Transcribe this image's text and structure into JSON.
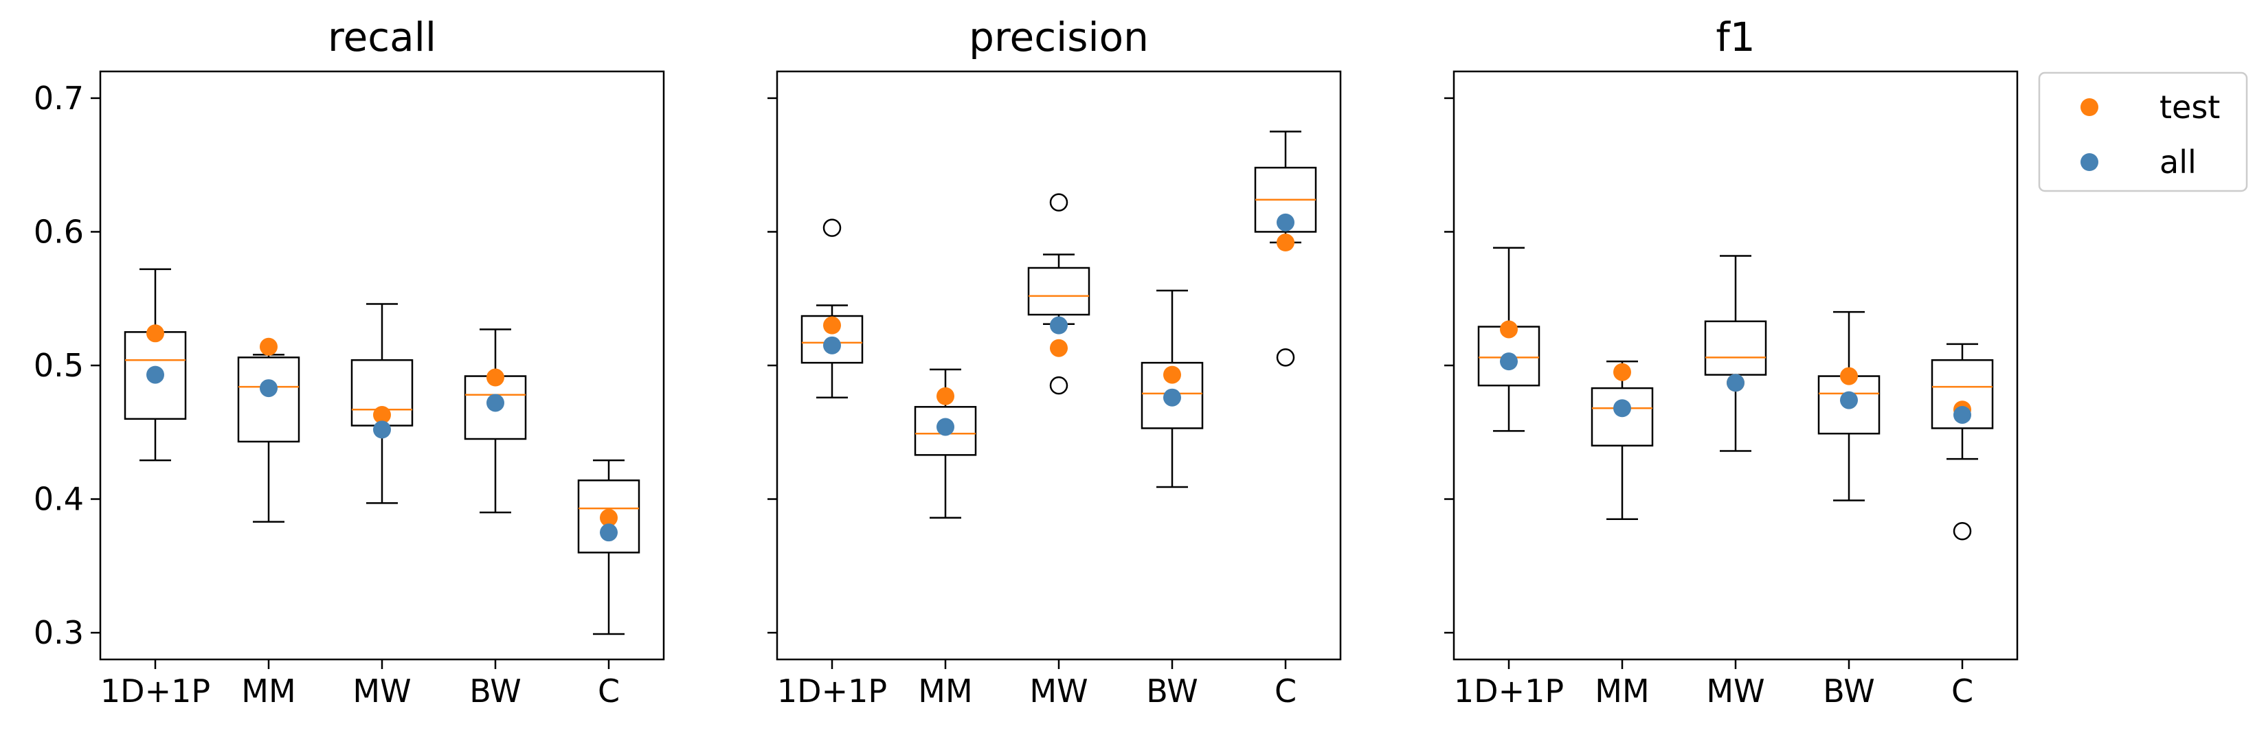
{
  "chart_data": [
    {
      "type": "box",
      "title": "recall",
      "categories": [
        "1D+1P",
        "MM",
        "MW",
        "BW",
        "C"
      ],
      "ylim": [
        0.28,
        0.72
      ],
      "yticks": [
        "0.3",
        "0.4",
        "0.5",
        "0.6",
        "0.7"
      ],
      "boxes": [
        {
          "whisker_low": 0.429,
          "q1": 0.46,
          "median": 0.504,
          "q3": 0.525,
          "whisker_high": 0.572,
          "outliers": []
        },
        {
          "whisker_low": 0.383,
          "q1": 0.443,
          "median": 0.484,
          "q3": 0.506,
          "whisker_high": 0.508,
          "outliers": []
        },
        {
          "whisker_low": 0.397,
          "q1": 0.455,
          "median": 0.467,
          "q3": 0.504,
          "whisker_high": 0.546,
          "outliers": []
        },
        {
          "whisker_low": 0.39,
          "q1": 0.445,
          "median": 0.478,
          "q3": 0.492,
          "whisker_high": 0.527,
          "outliers": []
        },
        {
          "whisker_low": 0.299,
          "q1": 0.36,
          "median": 0.393,
          "q3": 0.414,
          "whisker_high": 0.429,
          "outliers": []
        }
      ],
      "series": [
        {
          "name": "test",
          "color": "#ff7f0e",
          "values": [
            0.524,
            0.514,
            0.463,
            0.491,
            0.386
          ]
        },
        {
          "name": "all",
          "color": "#4682b4",
          "values": [
            0.493,
            0.483,
            0.452,
            0.472,
            0.375
          ]
        }
      ]
    },
    {
      "type": "box",
      "title": "precision",
      "categories": [
        "1D+1P",
        "MM",
        "MW",
        "BW",
        "C"
      ],
      "ylim": [
        0.28,
        0.72
      ],
      "boxes": [
        {
          "whisker_low": 0.476,
          "q1": 0.502,
          "median": 0.517,
          "q3": 0.537,
          "whisker_high": 0.545,
          "outliers": [
            0.603
          ]
        },
        {
          "whisker_low": 0.386,
          "q1": 0.433,
          "median": 0.449,
          "q3": 0.469,
          "whisker_high": 0.497,
          "outliers": []
        },
        {
          "whisker_low": 0.531,
          "q1": 0.538,
          "median": 0.552,
          "q3": 0.573,
          "whisker_high": 0.583,
          "outliers": [
            0.622,
            0.485
          ]
        },
        {
          "whisker_low": 0.409,
          "q1": 0.453,
          "median": 0.479,
          "q3": 0.502,
          "whisker_high": 0.556,
          "outliers": []
        },
        {
          "whisker_low": 0.592,
          "q1": 0.6,
          "median": 0.624,
          "q3": 0.648,
          "whisker_high": 0.675,
          "outliers": [
            0.506
          ]
        }
      ],
      "series": [
        {
          "name": "test",
          "color": "#ff7f0e",
          "values": [
            0.53,
            0.477,
            0.513,
            0.493,
            0.592
          ]
        },
        {
          "name": "all",
          "color": "#4682b4",
          "values": [
            0.515,
            0.454,
            0.53,
            0.476,
            0.607
          ]
        }
      ]
    },
    {
      "type": "box",
      "title": "f1",
      "categories": [
        "1D+1P",
        "MM",
        "MW",
        "BW",
        "C"
      ],
      "ylim": [
        0.28,
        0.72
      ],
      "boxes": [
        {
          "whisker_low": 0.451,
          "q1": 0.485,
          "median": 0.506,
          "q3": 0.529,
          "whisker_high": 0.588,
          "outliers": []
        },
        {
          "whisker_low": 0.385,
          "q1": 0.44,
          "median": 0.468,
          "q3": 0.483,
          "whisker_high": 0.503,
          "outliers": []
        },
        {
          "whisker_low": 0.436,
          "q1": 0.493,
          "median": 0.506,
          "q3": 0.533,
          "whisker_high": 0.582,
          "outliers": []
        },
        {
          "whisker_low": 0.399,
          "q1": 0.449,
          "median": 0.479,
          "q3": 0.492,
          "whisker_high": 0.54,
          "outliers": []
        },
        {
          "whisker_low": 0.43,
          "q1": 0.453,
          "median": 0.484,
          "q3": 0.504,
          "whisker_high": 0.516,
          "outliers": [
            0.376
          ]
        }
      ],
      "series": [
        {
          "name": "test",
          "color": "#ff7f0e",
          "values": [
            0.527,
            0.495,
            0.487,
            0.492,
            0.467
          ]
        },
        {
          "name": "all",
          "color": "#4682b4",
          "values": [
            0.503,
            0.468,
            0.487,
            0.474,
            0.463
          ]
        }
      ]
    }
  ],
  "legend": {
    "position": "outside-top-right",
    "items": [
      {
        "label": "test",
        "color": "#ff7f0e"
      },
      {
        "label": "all",
        "color": "#4682b4"
      }
    ]
  },
  "colors": {
    "median": "#ff7f0e",
    "axis": "#000000"
  }
}
